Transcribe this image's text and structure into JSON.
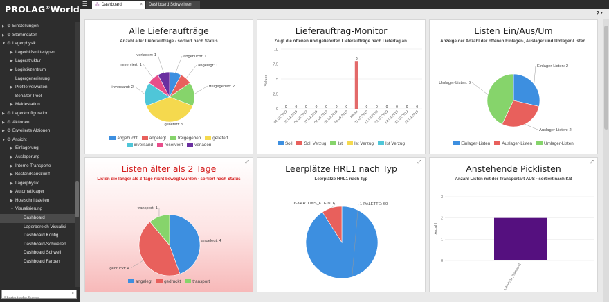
{
  "app": {
    "logo": "PROLAG",
    "logo_reg": "®",
    "logo_suffix": "World"
  },
  "tabs": [
    {
      "label": "Dashboard",
      "active": true
    },
    {
      "label": "Dashboard Schwellwert",
      "active": false
    }
  ],
  "sidebar": {
    "items": [
      {
        "label": "Einstellungen",
        "level": 0,
        "arrow": true,
        "gear": true
      },
      {
        "label": "Stammdaten",
        "level": 0,
        "arrow": true,
        "gear": true
      },
      {
        "label": "Lagerphysik",
        "level": 0,
        "arrow": true,
        "gear": true,
        "open": true
      },
      {
        "label": "Lagerhilfsmitteltypen",
        "level": 1,
        "arrow": true
      },
      {
        "label": "Lagerstruktur",
        "level": 1,
        "arrow": true
      },
      {
        "label": "Logistikzentrum",
        "level": 1,
        "arrow": true
      },
      {
        "label": "Lagergenerierung",
        "level": 1,
        "arrow": false
      },
      {
        "label": "Profile verwalten",
        "level": 1,
        "arrow": true
      },
      {
        "label": "Behälter-Pool",
        "level": 1,
        "arrow": false
      },
      {
        "label": "Meldestation",
        "level": 1,
        "arrow": true
      },
      {
        "label": "Lagerkonfiguration",
        "level": 0,
        "arrow": true,
        "gear": true
      },
      {
        "label": "Aktionen",
        "level": 0,
        "arrow": true,
        "gear": true
      },
      {
        "label": "Erweiterte Aktionen",
        "level": 0,
        "arrow": true,
        "gear": true
      },
      {
        "label": "Ansicht",
        "level": 0,
        "arrow": true,
        "gear": true,
        "open": true
      },
      {
        "label": "Einlagerung",
        "level": 1,
        "arrow": true
      },
      {
        "label": "Auslagerung",
        "level": 1,
        "arrow": true
      },
      {
        "label": "Interne Transporte",
        "level": 1,
        "arrow": true
      },
      {
        "label": "Bestandsauskunft",
        "level": 1,
        "arrow": true
      },
      {
        "label": "Lagerphysik",
        "level": 1,
        "arrow": true
      },
      {
        "label": "Automatiklager",
        "level": 1,
        "arrow": true
      },
      {
        "label": "Hostschnittstellen",
        "level": 1,
        "arrow": true
      },
      {
        "label": "Visualisierung",
        "level": 1,
        "arrow": true,
        "open": true
      },
      {
        "label": "Dashboard",
        "level": 2,
        "arrow": false,
        "active": true
      },
      {
        "label": "Lagerbereich Visualisi",
        "level": 2,
        "arrow": false
      },
      {
        "label": "Dashboard Konfig",
        "level": 2,
        "arrow": false
      },
      {
        "label": "Dashboard-Schwellen",
        "level": 2,
        "arrow": false
      },
      {
        "label": "Dashboard Schwell",
        "level": 2,
        "arrow": false
      },
      {
        "label": "Dashboard Farben",
        "level": 2,
        "arrow": false
      }
    ],
    "search_placeholder": "Shortcut oder Suche"
  },
  "colors": {
    "blue": "#3d8fe0",
    "red": "#e8605c",
    "green": "#86d46b",
    "yellow": "#f5d94e",
    "cyan": "#4fc6d8",
    "pink": "#e84d8a",
    "purple": "#6a2fa0",
    "bar_red": "#e36a6a",
    "bar_purple": "#55107f"
  },
  "widgets": [
    {
      "title": "Alle Lieferaufträge",
      "subtitle": "Anzahl aller Lieferaufträge - sortiert nach Status",
      "expand": false,
      "alert": false,
      "chart_data": {
        "type": "pie",
        "slices": [
          {
            "label": "abgebucht",
            "value": 1,
            "color": "#3d8fe0"
          },
          {
            "label": "angelegt",
            "value": 1,
            "color": "#e8605c"
          },
          {
            "label": "freigegeben",
            "value": 2,
            "color": "#86d46b"
          },
          {
            "label": "geliefert",
            "value": 5,
            "color": "#f5d94e"
          },
          {
            "label": "inversand",
            "value": 2,
            "color": "#4fc6d8"
          },
          {
            "label": "reserviert",
            "value": 1,
            "color": "#e84d8a"
          },
          {
            "label": "verladen",
            "value": 1,
            "color": "#6a2fa0"
          }
        ],
        "slice_labels": [
          "abgebucht: 1",
          "angelegt: 1",
          "freigegeben: 2",
          "geliefert: 5",
          "inversand: 2",
          "reserviert: 1",
          "verladen: 1"
        ],
        "legend_placement": "bottom"
      }
    },
    {
      "title": "Lieferauftrag-Monitor",
      "subtitle": "Zeigt die offenen und gelieferten Lieferaufträge nach Liefertag an.",
      "expand": false,
      "alert": false,
      "chart_data": {
        "type": "bar",
        "categories": [
          "04.09.2019",
          "05.09.2019",
          "06.09.2019",
          "07.09.2019",
          "08.09.2019",
          "09.09.2019",
          "10.09.2019",
          "Heute",
          "11.09.2019",
          "12.09.2019",
          "13.09.2019",
          "14.09.2019",
          "15.09.2019",
          "16.09.2019"
        ],
        "series": [
          {
            "name": "Soll",
            "color": "#3d8fe0",
            "values": [
              0,
              0,
              0,
              0,
              0,
              0,
              0,
              0,
              0,
              0,
              0,
              0,
              0,
              0
            ]
          },
          {
            "name": "Soll Verzug",
            "color": "#e8605c",
            "values": [
              0,
              0,
              0,
              0,
              0,
              0,
              0,
              8,
              0,
              0,
              0,
              0,
              0,
              0
            ]
          },
          {
            "name": "Ist",
            "color": "#86d46b",
            "values": [
              0,
              0,
              0,
              0,
              0,
              0,
              0,
              0,
              0,
              0,
              0,
              0,
              0,
              0
            ]
          },
          {
            "name": "Ist Verzug",
            "color": "#f5d94e",
            "values": [
              0,
              0,
              0,
              0,
              0,
              0,
              0,
              0,
              0,
              0,
              0,
              0,
              0,
              0
            ]
          },
          {
            "name": "Ist Verzug",
            "color": "#4fc6d8",
            "values": [
              0,
              0,
              0,
              0,
              0,
              0,
              0,
              0,
              0,
              0,
              0,
              0,
              0,
              0
            ]
          }
        ],
        "ylabel": "Values",
        "yticks": [
          "0",
          "2,5",
          "5",
          "7,5",
          "10"
        ],
        "ylim": [
          0,
          10
        ],
        "peak_label": "8",
        "zero_label": "0",
        "legend_placement": "bottom"
      }
    },
    {
      "title": "Listen Ein/Aus/Um",
      "subtitle": "Anzeige der Anzahl der offenen Einlager-, Auslager und Umlager-Listen.",
      "expand": false,
      "alert": false,
      "chart_data": {
        "type": "pie",
        "slices": [
          {
            "label": "Einlager-Listen",
            "value": 2,
            "color": "#3d8fe0"
          },
          {
            "label": "Auslager-Listen",
            "value": 2,
            "color": "#e8605c"
          },
          {
            "label": "Umlager-Listen",
            "value": 3,
            "color": "#86d46b"
          }
        ],
        "slice_labels": [
          "Einlager-Listen: 2",
          "Auslager-Listen: 2",
          "Umlager-Listen: 3"
        ],
        "legend_placement": "bottom"
      }
    },
    {
      "title": "Listen älter als 2 Tage",
      "subtitle": "Listen die länger als 2 Tage nicht bewegt wurden - sortiert nach Status",
      "expand": true,
      "alert": true,
      "chart_data": {
        "type": "pie",
        "slices": [
          {
            "label": "angelegt",
            "value": 4,
            "color": "#3d8fe0"
          },
          {
            "label": "gedruckt",
            "value": 4,
            "color": "#e8605c"
          },
          {
            "label": "transport",
            "value": 1,
            "color": "#86d46b"
          }
        ],
        "slice_labels": [
          "angelegt: 4",
          "gedruckt: 4",
          "transport: 1"
        ],
        "legend_placement": "bottom"
      }
    },
    {
      "title": "Leerplätze HRL1 nach Typ",
      "subtitle": "Leerplätze HRL1 nach Typ",
      "expand": true,
      "alert": false,
      "chart_data": {
        "type": "pie",
        "slices": [
          {
            "label": "1-PALETTE",
            "value": 60,
            "color": "#3d8fe0"
          },
          {
            "label": "6-KARTONS_KLEIN",
            "value": 6,
            "color": "#e8605c"
          }
        ],
        "slice_labels": [
          "1-PALETTE: 60",
          "6-KARTONS_KLEIN: 6"
        ],
        "legend_placement": "none"
      }
    },
    {
      "title": "Anstehende Picklisten",
      "subtitle": "Anzahl Listen mit der Transportart AUS - sortiert nach KB",
      "expand": true,
      "alert": false,
      "chart_data": {
        "type": "bar",
        "categories": [
          "KB-VISU_Standort1"
        ],
        "values": [
          2
        ],
        "ylabel": "Anzahl",
        "yticks": [
          "0",
          "1",
          "2",
          "3"
        ],
        "ylim": [
          0,
          3
        ],
        "legend_placement": "none"
      }
    }
  ]
}
